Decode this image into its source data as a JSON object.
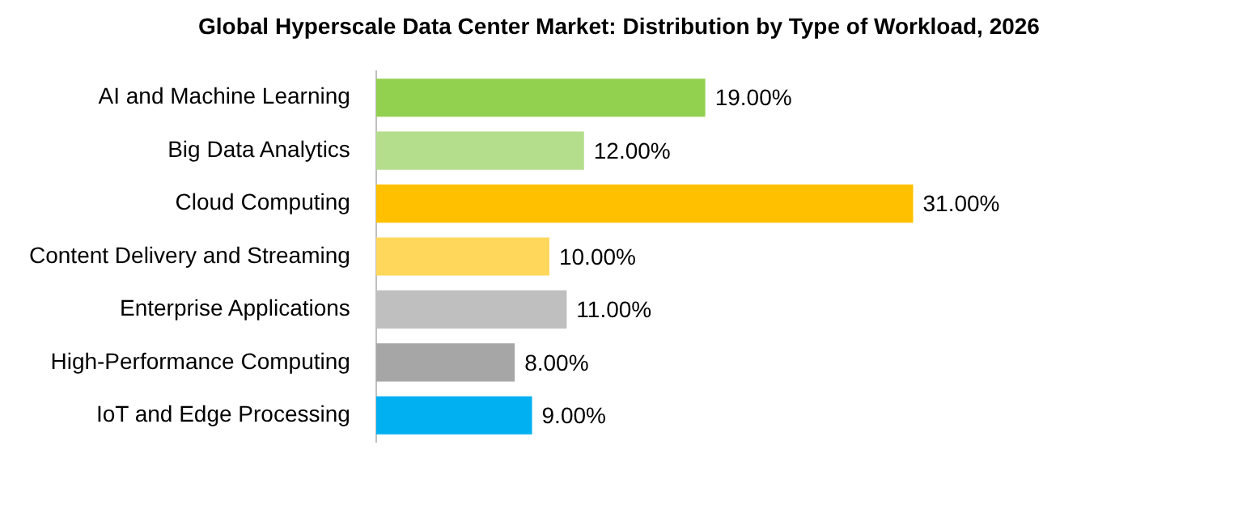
{
  "chart_data": {
    "type": "bar",
    "orientation": "horizontal",
    "title": "Global Hyperscale Data Center Market: Distribution by Type of Workload, 2026",
    "categories": [
      "AI and Machine Learning",
      "Big Data Analytics",
      "Cloud Computing",
      "Content Delivery and Streaming",
      "Enterprise Applications",
      "High-Performance Computing",
      "IoT and Edge Processing"
    ],
    "values": [
      19,
      12,
      31,
      10,
      11,
      8,
      9
    ],
    "colors": [
      "#92d050",
      "#b4de8c",
      "#ffc000",
      "#ffd75a",
      "#bfbfbf",
      "#a6a6a6",
      "#00b0f0"
    ],
    "value_labels": [
      "19.00%",
      "12.00%",
      "31.00%",
      "10.00%",
      "11.00%",
      "8.00%",
      "9.00%"
    ],
    "legend": false
  }
}
